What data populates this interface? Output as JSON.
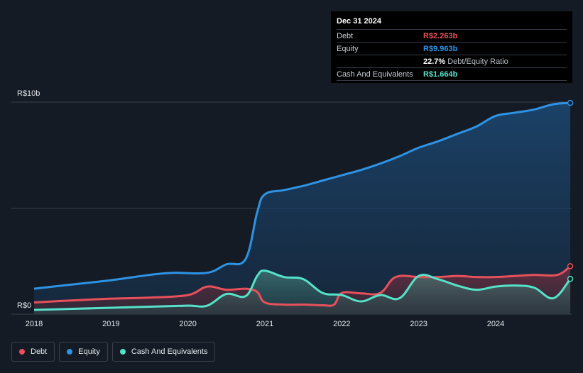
{
  "chart_data": {
    "type": "area",
    "currency_unit_labels": [
      "R$10b",
      "R$0"
    ],
    "x_ticks": [
      "2018",
      "2019",
      "2020",
      "2021",
      "2022",
      "2023",
      "2024"
    ],
    "ylim": [
      0,
      10
    ],
    "series": [
      {
        "name": "Equity",
        "color": "#2e93e5",
        "points": [
          [
            2018.0,
            1.2
          ],
          [
            2018.5,
            1.4
          ],
          [
            2019.0,
            1.6
          ],
          [
            2019.5,
            1.85
          ],
          [
            2019.8,
            1.95
          ],
          [
            2020.25,
            1.95
          ],
          [
            2020.5,
            2.35
          ],
          [
            2020.75,
            2.6
          ],
          [
            2020.9,
            4.8
          ],
          [
            2021.0,
            5.65
          ],
          [
            2021.25,
            5.85
          ],
          [
            2021.5,
            6.05
          ],
          [
            2021.75,
            6.3
          ],
          [
            2022.0,
            6.55
          ],
          [
            2022.25,
            6.8
          ],
          [
            2022.5,
            7.1
          ],
          [
            2022.75,
            7.45
          ],
          [
            2023.0,
            7.85
          ],
          [
            2023.25,
            8.15
          ],
          [
            2023.5,
            8.5
          ],
          [
            2023.75,
            8.85
          ],
          [
            2024.0,
            9.35
          ],
          [
            2024.25,
            9.5
          ],
          [
            2024.5,
            9.65
          ],
          [
            2024.75,
            9.9
          ],
          [
            2024.97,
            9.963
          ]
        ]
      },
      {
        "name": "Debt",
        "color": "#e8505b",
        "points": [
          [
            2018.0,
            0.55
          ],
          [
            2018.5,
            0.65
          ],
          [
            2019.0,
            0.73
          ],
          [
            2019.5,
            0.78
          ],
          [
            2020.0,
            0.9
          ],
          [
            2020.25,
            1.3
          ],
          [
            2020.5,
            1.15
          ],
          [
            2020.75,
            1.2
          ],
          [
            2020.9,
            1.05
          ],
          [
            2021.0,
            0.55
          ],
          [
            2021.25,
            0.45
          ],
          [
            2021.5,
            0.45
          ],
          [
            2021.75,
            0.42
          ],
          [
            2021.9,
            0.45
          ],
          [
            2022.0,
            1.0
          ],
          [
            2022.25,
            0.98
          ],
          [
            2022.5,
            1.0
          ],
          [
            2022.7,
            1.75
          ],
          [
            2023.0,
            1.75
          ],
          [
            2023.25,
            1.75
          ],
          [
            2023.5,
            1.8
          ],
          [
            2023.75,
            1.75
          ],
          [
            2024.0,
            1.75
          ],
          [
            2024.25,
            1.8
          ],
          [
            2024.5,
            1.85
          ],
          [
            2024.8,
            1.85
          ],
          [
            2024.97,
            2.263
          ]
        ]
      },
      {
        "name": "Cash And Equivalents",
        "color": "#56e2c8",
        "points": [
          [
            2018.0,
            0.2
          ],
          [
            2018.5,
            0.25
          ],
          [
            2019.0,
            0.3
          ],
          [
            2019.5,
            0.35
          ],
          [
            2020.0,
            0.4
          ],
          [
            2020.25,
            0.4
          ],
          [
            2020.5,
            0.95
          ],
          [
            2020.75,
            0.85
          ],
          [
            2020.9,
            1.8
          ],
          [
            2021.0,
            2.05
          ],
          [
            2021.25,
            1.75
          ],
          [
            2021.5,
            1.65
          ],
          [
            2021.75,
            1.0
          ],
          [
            2022.0,
            0.9
          ],
          [
            2022.25,
            0.6
          ],
          [
            2022.5,
            0.9
          ],
          [
            2022.75,
            0.75
          ],
          [
            2023.0,
            1.8
          ],
          [
            2023.25,
            1.65
          ],
          [
            2023.5,
            1.35
          ],
          [
            2023.75,
            1.15
          ],
          [
            2024.0,
            1.3
          ],
          [
            2024.25,
            1.35
          ],
          [
            2024.5,
            1.25
          ],
          [
            2024.75,
            0.75
          ],
          [
            2024.97,
            1.664
          ]
        ]
      }
    ]
  },
  "tooltip": {
    "date": "Dec 31 2024",
    "rows": [
      {
        "label": "Debt",
        "value": "R$2.263b",
        "color": "#e8505b"
      },
      {
        "label": "Equity",
        "value": "R$9.963b",
        "color": "#2e93e5"
      },
      {
        "label": "",
        "value": "22.7%",
        "desc": "Debt/Equity Ratio",
        "color": "#ffffff"
      },
      {
        "label": "Cash And Equivalents",
        "value": "R$1.664b",
        "color": "#56e2c8"
      }
    ]
  },
  "legend": [
    {
      "label": "Debt",
      "color": "#e8505b"
    },
    {
      "label": "Equity",
      "color": "#2e93e5"
    },
    {
      "label": "Cash And Equivalents",
      "color": "#56e2c8"
    }
  ]
}
